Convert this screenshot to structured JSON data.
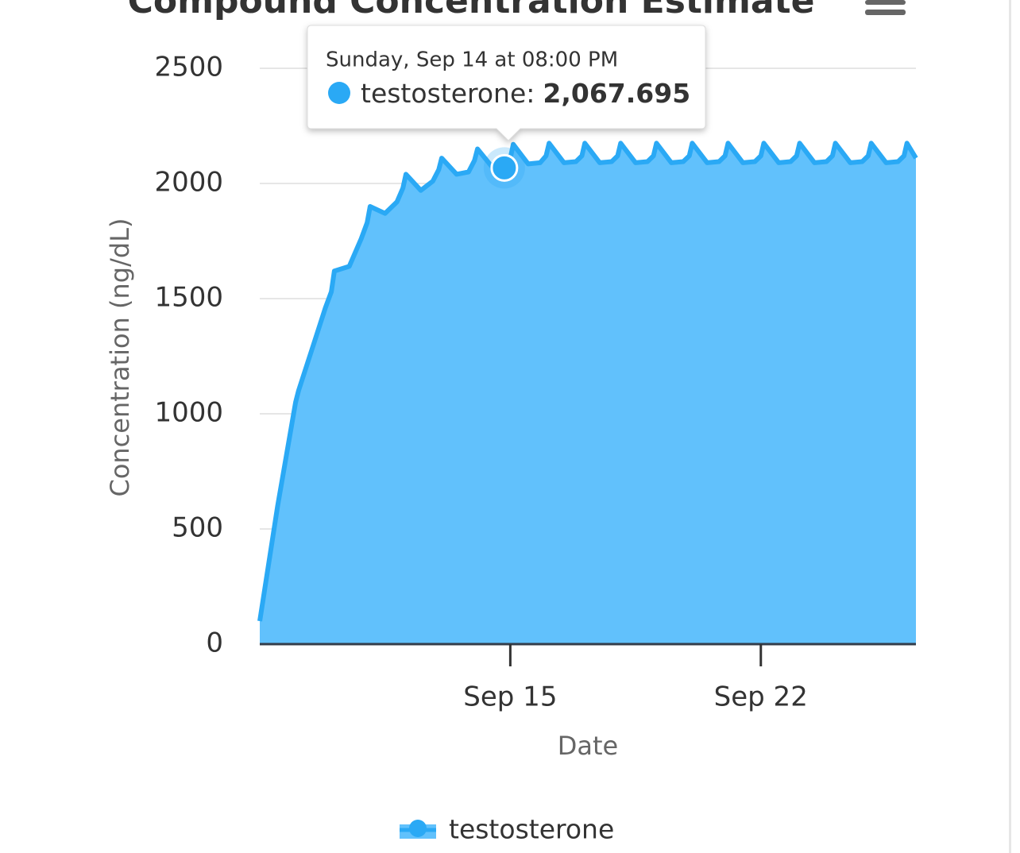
{
  "chart_data": {
    "type": "area",
    "title": "Compound Concentration Estimate",
    "y_label": "Concentration (ng/dL)",
    "x_label": "Date",
    "ylim": [
      0,
      2500
    ],
    "yticks": [
      0,
      500,
      1000,
      1500,
      2000,
      2500
    ],
    "xlim": [
      "Sep 8, 00:00",
      "Sep 26, 08:00"
    ],
    "xticks": [
      "Sep 15",
      "Sep 22"
    ],
    "grid": true,
    "legend": "bottom",
    "x": [
      "Sep 8, 00:00",
      "Sep 8, 12:00",
      "Sep 9, 00:00",
      "Sep 9, 02:00",
      "Sep 9, 12:00",
      "Sep 9, 20:00",
      "Sep 10, 00:00",
      "Sep 10, 02:00",
      "Sep 10, 12:00",
      "Sep 10, 20:00",
      "Sep 11, 00:00",
      "Sep 11, 02:00",
      "Sep 11, 12:00",
      "Sep 11, 20:00",
      "Sep 12, 00:00",
      "Sep 12, 02:00",
      "Sep 12, 12:00",
      "Sep 12, 20:00",
      "Sep 13, 00:00",
      "Sep 13, 02:00",
      "Sep 13, 12:00",
      "Sep 13, 20:00",
      "Sep 14, 00:00",
      "Sep 14, 02:00",
      "Sep 14, 12:00",
      "Sep 14, 20:00",
      "Sep 15, 00:00",
      "Sep 15, 02:00",
      "Sep 15, 12:00",
      "Sep 15, 20:00",
      "Sep 16, 00:00",
      "Sep 16, 02:00",
      "Sep 16, 12:00",
      "Sep 16, 20:00",
      "Sep 17, 00:00",
      "Sep 17, 02:00",
      "Sep 17, 12:00",
      "Sep 17, 20:00",
      "Sep 18, 00:00",
      "Sep 18, 02:00",
      "Sep 18, 12:00",
      "Sep 18, 20:00",
      "Sep 19, 00:00",
      "Sep 19, 02:00",
      "Sep 19, 12:00",
      "Sep 19, 20:00",
      "Sep 20, 00:00",
      "Sep 20, 02:00",
      "Sep 20, 12:00",
      "Sep 20, 20:00",
      "Sep 21, 00:00",
      "Sep 21, 02:00",
      "Sep 21, 12:00",
      "Sep 21, 20:00",
      "Sep 22, 00:00",
      "Sep 22, 02:00",
      "Sep 22, 12:00",
      "Sep 22, 20:00",
      "Sep 23, 00:00",
      "Sep 23, 02:00",
      "Sep 23, 12:00",
      "Sep 23, 20:00",
      "Sep 24, 00:00",
      "Sep 24, 02:00",
      "Sep 24, 12:00",
      "Sep 24, 20:00",
      "Sep 25, 00:00",
      "Sep 25, 02:00",
      "Sep 25, 12:00",
      "Sep 25, 20:00",
      "Sep 26, 00:00",
      "Sep 26, 02:00",
      "Sep 26, 08:00"
    ],
    "series": [
      {
        "name": "testosterone",
        "color": "#2aa9f5",
        "fill": "#61c1fc",
        "values": [
          100,
          600,
          1050,
          1100,
          1300,
          1460,
          1530,
          1620,
          1640,
          1760,
          1830,
          1900,
          1870,
          1920,
          1980,
          2040,
          1970,
          2010,
          2060,
          2110,
          2040,
          2050,
          2100,
          2150,
          2070,
          2067.695,
          2110,
          2170,
          2085,
          2090,
          2120,
          2175,
          2090,
          2095,
          2120,
          2175,
          2090,
          2095,
          2120,
          2175,
          2090,
          2095,
          2120,
          2175,
          2090,
          2095,
          2120,
          2175,
          2090,
          2095,
          2120,
          2175,
          2090,
          2095,
          2120,
          2175,
          2090,
          2095,
          2120,
          2175,
          2090,
          2095,
          2120,
          2175,
          2090,
          2095,
          2120,
          2175,
          2090,
          2095,
          2120,
          2175,
          2110
        ]
      }
    ],
    "tooltip": {
      "header": "Sunday, Sep 14 at 08:00 PM",
      "label": "testosterone:",
      "x": "Sep 14, 20:00",
      "value_label": "2,067.695"
    }
  }
}
